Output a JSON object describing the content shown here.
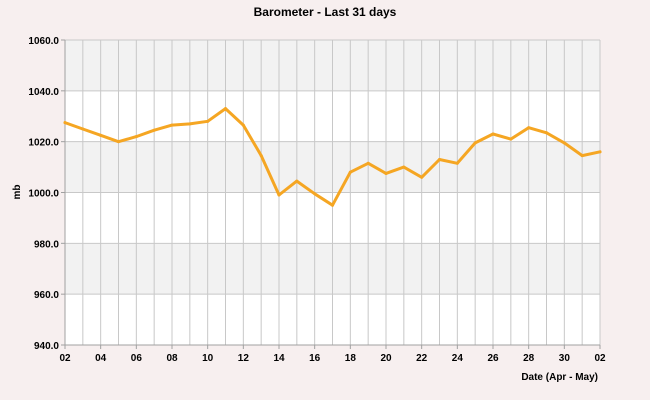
{
  "chart_data": {
    "type": "line",
    "title": "Barometer - Last 31 days",
    "xlabel": "Date (Apr - May)",
    "ylabel": "mb",
    "ylim": [
      940,
      1060
    ],
    "yticks": [
      "940.0",
      "960.0",
      "980.0",
      "1000.0",
      "1020.0",
      "1040.0",
      "1060.0"
    ],
    "xtick_labels": [
      "02",
      "04",
      "06",
      "08",
      "10",
      "12",
      "14",
      "16",
      "18",
      "20",
      "22",
      "24",
      "26",
      "28",
      "30",
      "02"
    ],
    "grid": true,
    "colors": {
      "line": "#F5A623",
      "band": "#F2F2F2",
      "plot_bg": "#FFFFFF",
      "grid": "#C8C8C8",
      "axis": "#A0A0A0",
      "page_bg": "#F7EFEF"
    },
    "series": [
      {
        "values": [
          1027.5,
          1025.0,
          1022.5,
          1020.0,
          1022.0,
          1024.5,
          1026.5,
          1027.0,
          1028.0,
          1033.0,
          1026.5,
          1014.5,
          999.0,
          1004.5,
          999.5,
          995.0,
          1008.0,
          1011.5,
          1007.5,
          1010.0,
          1006.0,
          1013.0,
          1011.5,
          1019.5,
          1023.0,
          1021.0,
          1025.5,
          1023.5,
          1019.5,
          1014.5,
          1016.0
        ]
      }
    ]
  }
}
